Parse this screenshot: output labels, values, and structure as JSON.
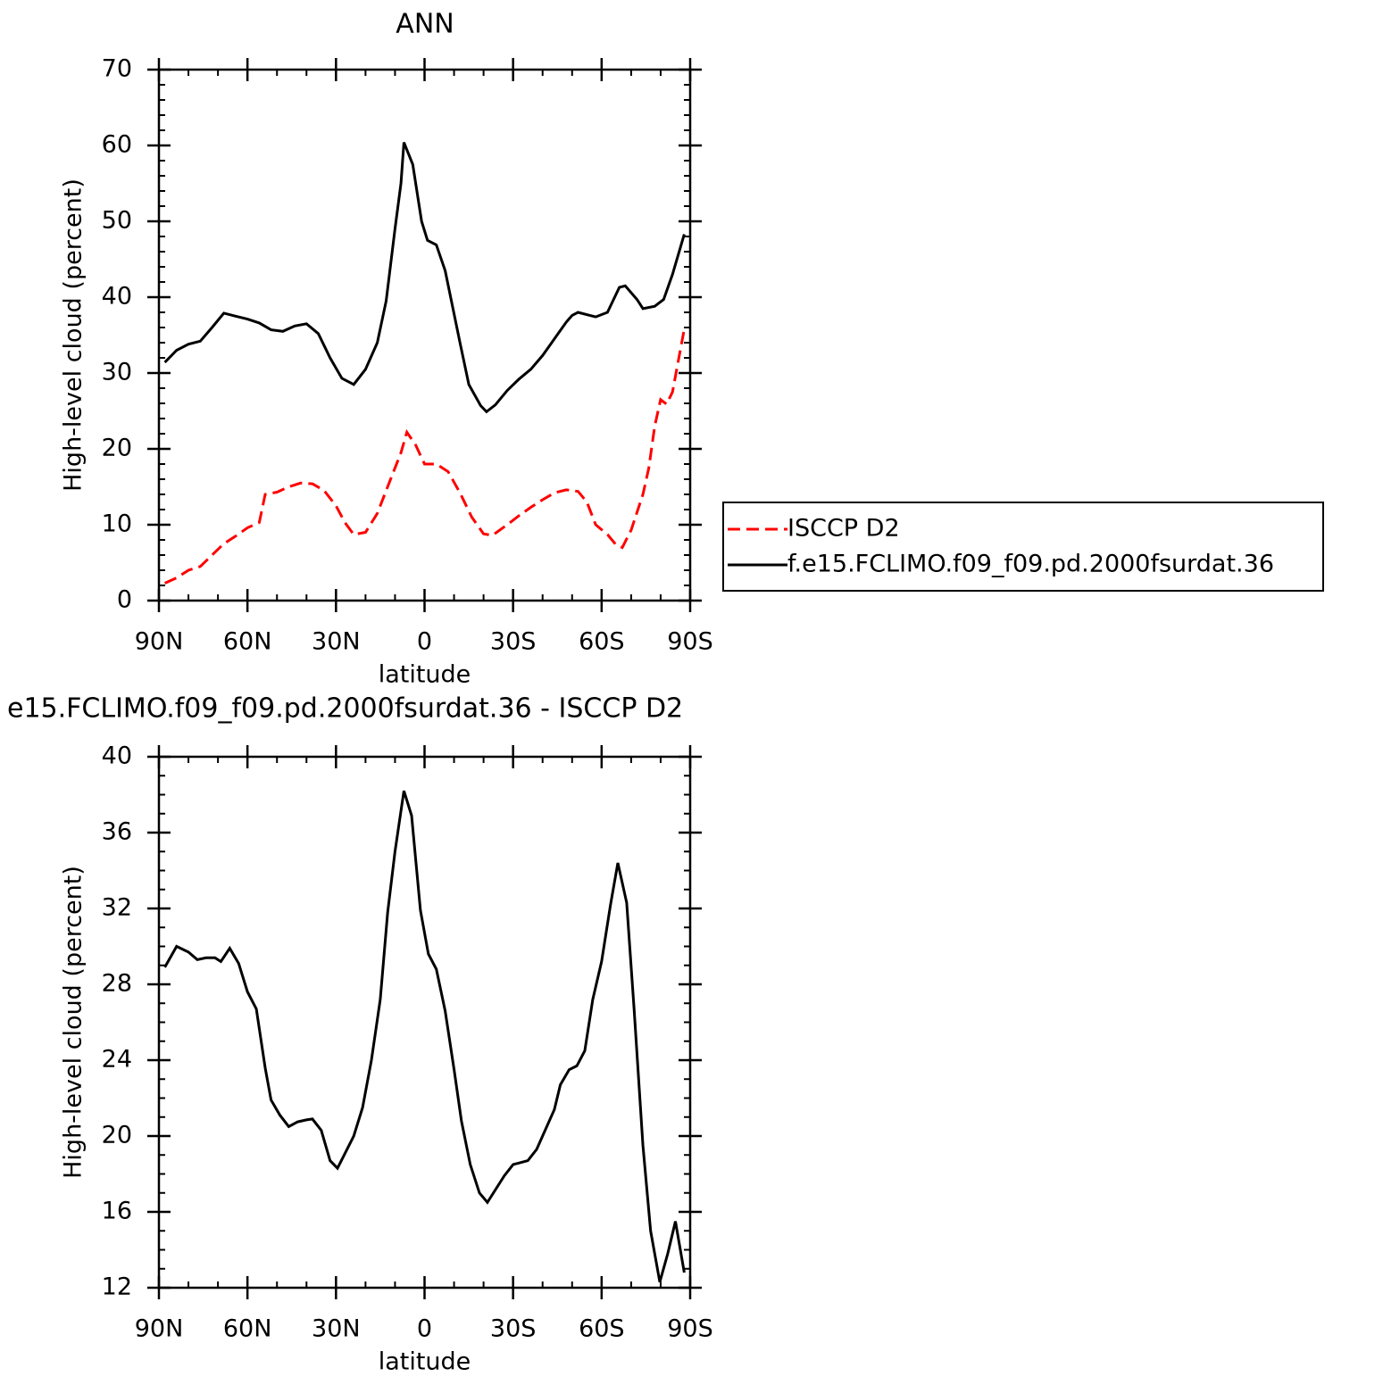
{
  "chart_data": [
    {
      "type": "line",
      "title": "ANN",
      "x_label": "latitude",
      "y_label": "High-level cloud (percent)",
      "xlim": [
        90,
        -90
      ],
      "xticks": [
        {
          "value": 90,
          "label": "90N"
        },
        {
          "value": 60,
          "label": "60N"
        },
        {
          "value": 30,
          "label": "30N"
        },
        0,
        {
          "value": -30,
          "label": "30S"
        },
        {
          "value": -60,
          "label": "60S"
        },
        {
          "value": -90,
          "label": "90S"
        }
      ],
      "ylim": [
        0,
        70
      ],
      "yticks": [
        0,
        10,
        20,
        30,
        40,
        50,
        60,
        70
      ],
      "legend": "right",
      "series": [
        {
          "name": "ISCCP D2",
          "color": "#ff0000",
          "linestyle": "dashed",
          "x": [
            88,
            84,
            80,
            76,
            72,
            68,
            64,
            60,
            56,
            54,
            50,
            46,
            42,
            38,
            34,
            30,
            27,
            24,
            20,
            16,
            12,
            8,
            6,
            3,
            0,
            -4,
            -8,
            -12,
            -16,
            -20,
            -23,
            -28,
            -32,
            -36,
            -40,
            -44,
            -48,
            -52,
            -55,
            -58,
            -62,
            -65,
            -67,
            -70,
            -74,
            -76,
            -78,
            -80,
            -82,
            -84,
            -88
          ],
          "values": [
            2.3,
            3,
            4,
            4.5,
            6,
            7.5,
            8.5,
            9.6,
            10.3,
            14,
            14.3,
            15,
            15.5,
            15.4,
            14.5,
            12.5,
            10.3,
            8.7,
            9,
            11.5,
            15.5,
            19.5,
            22.2,
            20.5,
            18,
            18,
            17,
            14.2,
            11,
            8.8,
            8.6,
            10,
            11.2,
            12.3,
            13.3,
            14.2,
            14.6,
            14.4,
            13,
            10,
            8.7,
            7.3,
            7,
            9.3,
            14,
            17.5,
            23,
            26.5,
            25.9,
            27.5,
            35.8
          ]
        },
        {
          "name": "f.e15.FCLIMO.f09_f09.pd.2000fsurdat.36",
          "color": "#000000",
          "linestyle": "solid",
          "x": [
            88,
            84,
            80,
            76,
            72,
            68,
            64,
            60,
            56,
            52,
            48,
            44,
            40,
            36,
            32,
            28,
            24,
            20,
            16,
            13,
            10,
            8,
            7,
            4,
            1,
            -1,
            -4,
            -7,
            -12,
            -15,
            -19,
            -21,
            -24,
            -28,
            -32,
            -36,
            -40,
            -44,
            -48,
            -50,
            -52,
            -56,
            -58,
            -62,
            -66,
            -68,
            -72,
            -74,
            -78,
            -81,
            -84,
            -88
          ],
          "values": [
            31.4,
            33,
            33.8,
            34.2,
            36,
            37.9,
            37.5,
            37.1,
            36.6,
            35.7,
            35.5,
            36.2,
            36.5,
            35.2,
            32,
            29.3,
            28.5,
            30.5,
            34,
            39.5,
            49,
            55,
            60.4,
            57.5,
            50,
            47.5,
            46.9,
            43.5,
            34,
            28.5,
            25.7,
            24.9,
            25.8,
            27.7,
            29.2,
            30.5,
            32.3,
            34.5,
            36.7,
            37.6,
            38,
            37.6,
            37.4,
            38,
            41.3,
            41.5,
            39.7,
            38.5,
            38.8,
            39.7,
            43,
            48.3
          ]
        }
      ]
    },
    {
      "type": "line",
      "title": "e15.FCLIMO.f09_f09.pd.2000fsurdat.36 - ISCCP D2",
      "x_label": "latitude",
      "y_label": "High-level cloud (percent)",
      "xlim": [
        90,
        -90
      ],
      "xticks": [
        {
          "value": 90,
          "label": "90N"
        },
        {
          "value": 60,
          "label": "60N"
        },
        {
          "value": 30,
          "label": "30N"
        },
        0,
        {
          "value": -30,
          "label": "30S"
        },
        {
          "value": -60,
          "label": "60S"
        },
        {
          "value": -90,
          "label": "90S"
        }
      ],
      "ylim": [
        12,
        40
      ],
      "yticks": [
        12,
        16,
        20,
        24,
        28,
        32,
        36,
        40
      ],
      "series": [
        {
          "color": "#000000",
          "linestyle": "solid",
          "x": [
            88,
            84,
            80,
            77,
            74,
            71,
            69,
            66,
            63,
            60,
            57,
            54,
            52,
            49,
            46,
            43,
            40,
            38,
            35,
            32,
            29.5,
            24,
            21,
            18,
            15,
            12.5,
            10,
            7,
            4.4,
            1.4,
            -1.3,
            -4,
            -7,
            -10,
            -12.5,
            -15.5,
            -18.6,
            -21.3,
            -27,
            -30,
            -32.5,
            -35,
            -38,
            -44,
            -46,
            -49,
            -51.6,
            -54.3,
            -57,
            -60,
            -63,
            -65.5,
            -68.5,
            -71,
            -74,
            -76.6,
            -79.7,
            -82.4,
            -85,
            -88
          ],
          "values": [
            28.9,
            30,
            29.7,
            29.3,
            29.4,
            29.4,
            29.2,
            29.9,
            29.1,
            27.6,
            26.7,
            23.6,
            21.9,
            21.1,
            20.5,
            20.75,
            20.85,
            20.9,
            20.3,
            18.7,
            18.3,
            20,
            21.5,
            24,
            27.2,
            31.8,
            35,
            38.2,
            36.9,
            31.9,
            29.6,
            28.8,
            26.6,
            23.5,
            20.8,
            18.5,
            17,
            16.5,
            17.9,
            18.5,
            18.6,
            18.7,
            19.3,
            21.4,
            22.7,
            23.5,
            23.7,
            24.5,
            27.2,
            29.2,
            32.2,
            34.4,
            32.3,
            26.7,
            19.5,
            15,
            12.3,
            13.8,
            15.5,
            12.8
          ]
        }
      ]
    }
  ]
}
